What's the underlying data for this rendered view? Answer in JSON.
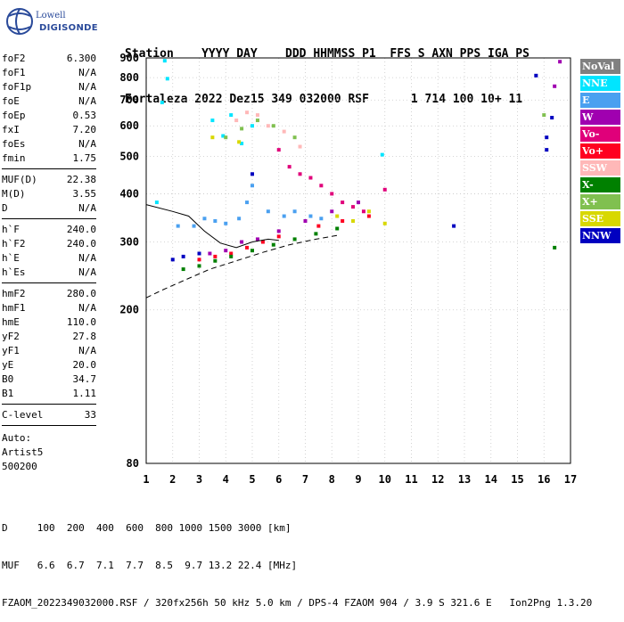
{
  "logo": {
    "line1": "Lowell",
    "line2": "DIGISONDE"
  },
  "header": {
    "labels": "Station    YYYY DAY    DDD HHMMSS P1  FFS S AXN PPS IGA PS",
    "values": "Fortaleza 2022 Dez15 349 032000 RSF      1 714 100 10+ 11"
  },
  "params": [
    {
      "label": "foF2",
      "value": "6.300"
    },
    {
      "label": "foF1",
      "value": "N/A"
    },
    {
      "label": "foF1p",
      "value": "N/A"
    },
    {
      "label": "foE",
      "value": "N/A"
    },
    {
      "label": "foEp",
      "value": "0.53"
    },
    {
      "label": "fxI",
      "value": "7.20"
    },
    {
      "label": "foEs",
      "value": "N/A"
    },
    {
      "label": "fmin",
      "value": "1.75"
    },
    {
      "label": "MUF(D)",
      "value": "22.38"
    },
    {
      "label": "M(D)",
      "value": "3.55"
    },
    {
      "label": "D",
      "value": "N/A"
    },
    {
      "label": "h`F",
      "value": "240.0"
    },
    {
      "label": "h`F2",
      "value": "240.0"
    },
    {
      "label": "h`E",
      "value": "N/A"
    },
    {
      "label": "h`Es",
      "value": "N/A"
    },
    {
      "label": "hmF2",
      "value": "280.0"
    },
    {
      "label": "hmF1",
      "value": "N/A"
    },
    {
      "label": "hmE",
      "value": "110.0"
    },
    {
      "label": "yF2",
      "value": "27.8"
    },
    {
      "label": "yF1",
      "value": "N/A"
    },
    {
      "label": "yE",
      "value": "20.0"
    },
    {
      "label": "B0",
      "value": "34.7"
    },
    {
      "label": "B1",
      "value": "1.11"
    },
    {
      "label": "C-level",
      "value": "33"
    }
  ],
  "autoscaling": {
    "line1": "Auto:",
    "line2": "Artist5",
    "line3": "500200"
  },
  "legend": [
    {
      "label": "NoVal",
      "bg": "#808080",
      "fg": "#ffffff"
    },
    {
      "label": "NNE",
      "bg": "#00e5ff",
      "fg": "#ffffff"
    },
    {
      "label": "E",
      "bg": "#4aa0f0",
      "fg": "#ffffff"
    },
    {
      "label": "W",
      "bg": "#a000b0",
      "fg": "#ffffff"
    },
    {
      "label": "Vo-",
      "bg": "#e0007a",
      "fg": "#ffffff"
    },
    {
      "label": "Vo+",
      "bg": "#ff0020",
      "fg": "#ffffff"
    },
    {
      "label": "SSW",
      "bg": "#ffb8b8",
      "fg": "#ffffff"
    },
    {
      "label": "X-",
      "bg": "#008000",
      "fg": "#ffffff"
    },
    {
      "label": "X+",
      "bg": "#80c050",
      "fg": "#ffffff"
    },
    {
      "label": "SSE",
      "bg": "#d8d800",
      "fg": "#ffffff"
    },
    {
      "label": "NNW",
      "bg": "#0000c0",
      "fg": "#ffffff"
    }
  ],
  "bottom": {
    "d_line": "D     100  200  400  600  800 1000 1500 3000 [km]",
    "muf_line": "MUF   6.6  6.7  7.1  7.7  8.5  9.7 13.2 22.4 [MHz]",
    "footer": "FZAOM_2022349032000.RSF / 320fx256h 50 kHz 5.0 km / DPS-4 FZAOM 904 / 3.9 S 321.6 E   Ion2Png 1.3.20"
  },
  "chart_data": {
    "type": "scatter",
    "title": "",
    "xlabel": "",
    "ylabel": "",
    "xlim": [
      1,
      17
    ],
    "ylim": [
      80,
      900
    ],
    "xticks": [
      1,
      2,
      3,
      4,
      5,
      6,
      7,
      8,
      9,
      10,
      11,
      12,
      13,
      14,
      15,
      16,
      17
    ],
    "yticks": [
      80,
      200,
      300,
      400,
      500,
      600,
      700,
      800,
      900
    ],
    "y_scale": "log",
    "grid": true,
    "series": [
      {
        "name": "NNE",
        "color": "#00e5ff",
        "points": [
          [
            1.7,
            885
          ],
          [
            1.8,
            795
          ],
          [
            1.6,
            690
          ],
          [
            3.5,
            620
          ],
          [
            4.2,
            640
          ],
          [
            5.0,
            600
          ],
          [
            4.6,
            540
          ],
          [
            3.9,
            565
          ],
          [
            1.4,
            380
          ],
          [
            9.9,
            505
          ]
        ]
      },
      {
        "name": "E",
        "color": "#4aa0f0",
        "points": [
          [
            2.2,
            330
          ],
          [
            2.8,
            330
          ],
          [
            3.2,
            345
          ],
          [
            3.6,
            340
          ],
          [
            4.0,
            335
          ],
          [
            4.5,
            345
          ],
          [
            4.8,
            380
          ],
          [
            5.0,
            420
          ],
          [
            5.6,
            360
          ],
          [
            6.2,
            350
          ],
          [
            6.6,
            360
          ],
          [
            7.2,
            350
          ],
          [
            7.6,
            345
          ]
        ]
      },
      {
        "name": "W",
        "color": "#a000b0",
        "points": [
          [
            3.4,
            280
          ],
          [
            4.0,
            285
          ],
          [
            4.6,
            300
          ],
          [
            5.2,
            305
          ],
          [
            6.0,
            320
          ],
          [
            7.0,
            340
          ],
          [
            8.0,
            360
          ],
          [
            9.0,
            380
          ],
          [
            16.6,
            880
          ],
          [
            16.4,
            760
          ]
        ]
      },
      {
        "name": "Vo-",
        "color": "#e0007a",
        "points": [
          [
            6.0,
            520
          ],
          [
            6.4,
            470
          ],
          [
            6.8,
            450
          ],
          [
            7.2,
            440
          ],
          [
            7.6,
            420
          ],
          [
            8.0,
            400
          ],
          [
            8.4,
            380
          ],
          [
            8.8,
            370
          ],
          [
            9.2,
            360
          ],
          [
            10.0,
            410
          ]
        ]
      },
      {
        "name": "Vo+",
        "color": "#ff0020",
        "points": [
          [
            3.0,
            270
          ],
          [
            3.6,
            275
          ],
          [
            4.2,
            280
          ],
          [
            4.8,
            290
          ],
          [
            5.4,
            300
          ],
          [
            6.0,
            310
          ],
          [
            7.5,
            330
          ],
          [
            8.4,
            340
          ],
          [
            9.4,
            350
          ]
        ]
      },
      {
        "name": "SSW",
        "color": "#ffb8b8",
        "points": [
          [
            4.4,
            620
          ],
          [
            4.8,
            650
          ],
          [
            5.2,
            640
          ],
          [
            5.6,
            600
          ],
          [
            6.2,
            580
          ],
          [
            6.8,
            530
          ]
        ]
      },
      {
        "name": "X-",
        "color": "#008000",
        "points": [
          [
            2.4,
            255
          ],
          [
            3.0,
            260
          ],
          [
            3.6,
            268
          ],
          [
            4.2,
            275
          ],
          [
            5.0,
            285
          ],
          [
            5.8,
            295
          ],
          [
            6.6,
            305
          ],
          [
            7.4,
            315
          ],
          [
            8.2,
            325
          ],
          [
            16.4,
            290
          ]
        ]
      },
      {
        "name": "X+",
        "color": "#80c050",
        "points": [
          [
            4.0,
            560
          ],
          [
            4.6,
            590
          ],
          [
            5.2,
            620
          ],
          [
            5.8,
            600
          ],
          [
            6.6,
            560
          ],
          [
            16.0,
            640
          ]
        ]
      },
      {
        "name": "SSE",
        "color": "#d8d800",
        "points": [
          [
            3.5,
            560
          ],
          [
            4.5,
            545
          ],
          [
            8.2,
            350
          ],
          [
            8.8,
            340
          ],
          [
            9.4,
            360
          ],
          [
            10.0,
            335
          ]
        ]
      },
      {
        "name": "NNW",
        "color": "#0000c0",
        "points": [
          [
            2.0,
            270
          ],
          [
            2.4,
            275
          ],
          [
            3.0,
            280
          ],
          [
            5.0,
            450
          ],
          [
            12.6,
            330
          ],
          [
            15.7,
            810
          ],
          [
            16.1,
            560
          ],
          [
            16.1,
            520
          ],
          [
            16.3,
            630
          ]
        ]
      }
    ],
    "curves": [
      {
        "name": "dashed",
        "style": "dashed",
        "points": [
          [
            1.0,
            215
          ],
          [
            1.6,
            225
          ],
          [
            2.4,
            238
          ],
          [
            3.4,
            255
          ],
          [
            4.4,
            268
          ],
          [
            5.4,
            282
          ],
          [
            6.4,
            295
          ],
          [
            7.4,
            305
          ],
          [
            8.2,
            312
          ]
        ]
      },
      {
        "name": "solid",
        "style": "solid",
        "points": [
          [
            1.0,
            375
          ],
          [
            2.0,
            360
          ],
          [
            2.6,
            350
          ],
          [
            3.2,
            320
          ],
          [
            3.8,
            298
          ],
          [
            4.4,
            290
          ],
          [
            5.0,
            300
          ],
          [
            5.6,
            305
          ],
          [
            6.0,
            303
          ]
        ]
      }
    ]
  }
}
